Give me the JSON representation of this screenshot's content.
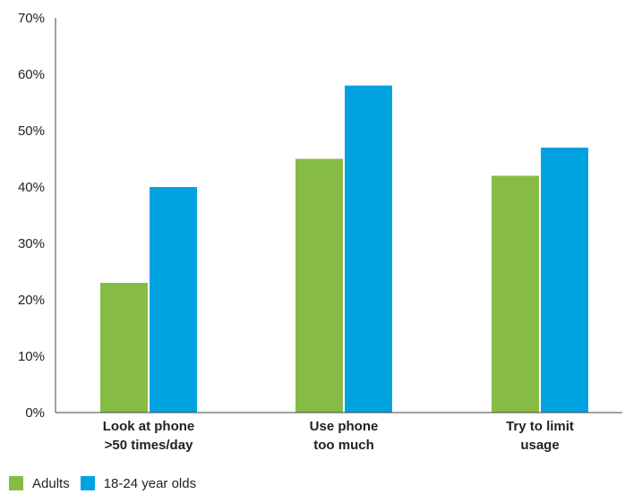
{
  "colors": {
    "adults": "#86bc45",
    "young": "#00a3e0",
    "axis": "#444444",
    "text": "#222222"
  },
  "chart_data": {
    "type": "bar",
    "title": "",
    "xlabel": "",
    "ylabel": "",
    "ylim": [
      0,
      70
    ],
    "yticks": [
      "0%",
      "10%",
      "20%",
      "30%",
      "40%",
      "50%",
      "60%",
      "70%"
    ],
    "categories": [
      [
        "Look at phone",
        ">50 times/day"
      ],
      [
        "Use phone",
        "too much"
      ],
      [
        "Try to limit",
        "usage"
      ]
    ],
    "series": [
      {
        "name": "Adults",
        "values": [
          23,
          45,
          42
        ]
      },
      {
        "name": "18-24 year olds",
        "values": [
          40,
          58,
          47
        ]
      }
    ],
    "grid": false,
    "legend_position": "bottom-left"
  },
  "legend": {
    "items": [
      "Adults",
      "18-24 year olds"
    ]
  }
}
